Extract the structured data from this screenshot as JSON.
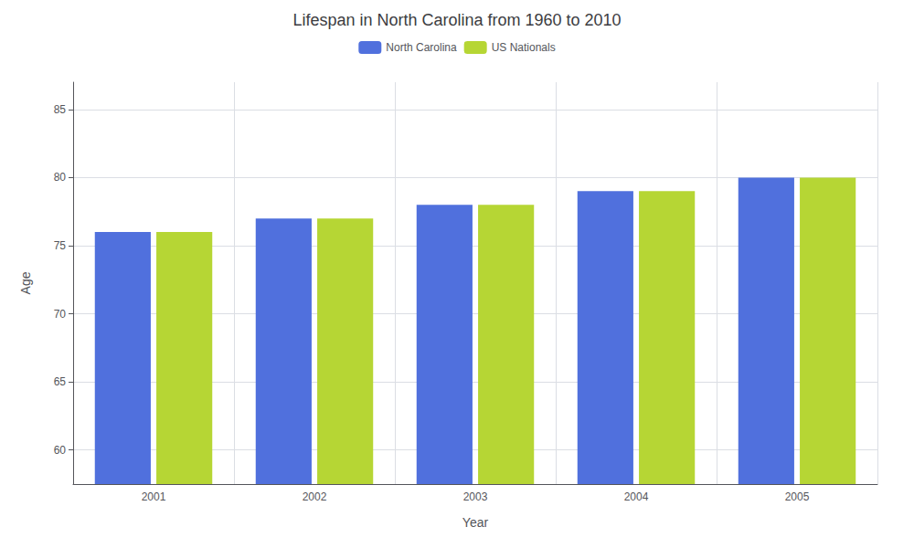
{
  "chart_data": {
    "type": "bar",
    "title": "Lifespan in North Carolina from 1960 to 2010",
    "x_label": "Year",
    "y_label": "Age",
    "categories": [
      "2001",
      "2002",
      "2003",
      "2004",
      "2005"
    ],
    "series": [
      {
        "name": "North Carolina",
        "values": [
          76,
          77,
          78,
          79,
          80
        ]
      },
      {
        "name": "US Nationals",
        "values": [
          76,
          77,
          78,
          79,
          80
        ]
      }
    ],
    "ylim": [
      57.5,
      87
    ],
    "yticks": [
      60,
      65,
      70,
      75,
      80,
      85
    ],
    "grid": true,
    "legend": "top"
  }
}
